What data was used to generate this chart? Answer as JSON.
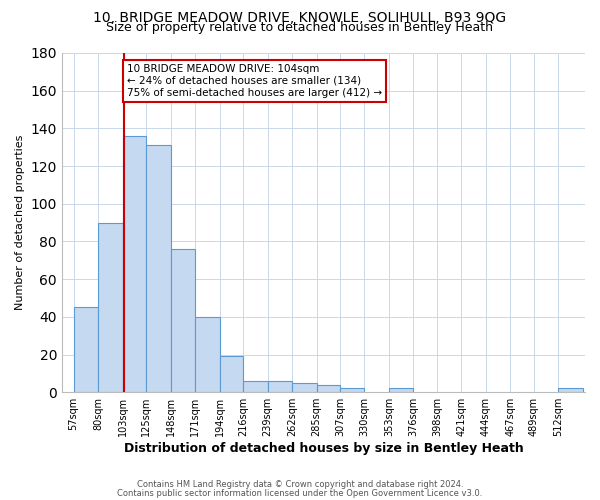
{
  "title1": "10, BRIDGE MEADOW DRIVE, KNOWLE, SOLIHULL, B93 9QG",
  "title2": "Size of property relative to detached houses in Bentley Heath",
  "xlabel": "Distribution of detached houses by size in Bentley Heath",
  "ylabel": "Number of detached properties",
  "footnote1": "Contains HM Land Registry data © Crown copyright and database right 2024.",
  "footnote2": "Contains public sector information licensed under the Open Government Licence v3.0.",
  "annotation_line1": "10 BRIDGE MEADOW DRIVE: 104sqm",
  "annotation_line2": "← 24% of detached houses are smaller (134)",
  "annotation_line3": "75% of semi-detached houses are larger (412) →",
  "property_size": 104,
  "bar_left_edges": [
    57,
    80,
    103,
    125,
    148,
    171,
    194,
    216,
    239,
    262,
    285,
    307,
    330,
    353,
    376,
    398,
    421,
    444,
    467,
    489,
    512
  ],
  "bar_widths": [
    23,
    23,
    22,
    23,
    23,
    23,
    22,
    23,
    23,
    23,
    22,
    23,
    23,
    23,
    22,
    23,
    23,
    23,
    22,
    23,
    23
  ],
  "bar_heights": [
    45,
    90,
    136,
    131,
    76,
    40,
    19,
    6,
    6,
    5,
    4,
    2,
    0,
    2,
    0,
    0,
    0,
    0,
    0,
    0,
    2
  ],
  "xtick_labels": [
    "57sqm",
    "80sqm",
    "103sqm",
    "125sqm",
    "148sqm",
    "171sqm",
    "194sqm",
    "216sqm",
    "239sqm",
    "262sqm",
    "285sqm",
    "307sqm",
    "330sqm",
    "353sqm",
    "376sqm",
    "398sqm",
    "421sqm",
    "444sqm",
    "467sqm",
    "489sqm",
    "512sqm"
  ],
  "xtick_positions": [
    57,
    80,
    103,
    125,
    148,
    171,
    194,
    216,
    239,
    262,
    285,
    307,
    330,
    353,
    376,
    398,
    421,
    444,
    467,
    489,
    512
  ],
  "ytick_values": [
    0,
    20,
    40,
    60,
    80,
    100,
    120,
    140,
    160,
    180
  ],
  "ylim": [
    0,
    180
  ],
  "xlim": [
    46,
    537
  ],
  "bar_color": "#c5d9f1",
  "bar_edge_color": "#5b9bd5",
  "red_line_color": "#cc0000",
  "grid_color": "#c8d8ea",
  "background_color": "#ffffff",
  "annotation_box_color": "#ffffff",
  "annotation_box_edge": "#cc0000",
  "title1_fontsize": 10,
  "title2_fontsize": 9,
  "xlabel_fontsize": 9,
  "ylabel_fontsize": 8,
  "xtick_fontsize": 7,
  "ytick_fontsize": 8,
  "footnote_fontsize": 6,
  "annotation_fontsize": 7.5
}
